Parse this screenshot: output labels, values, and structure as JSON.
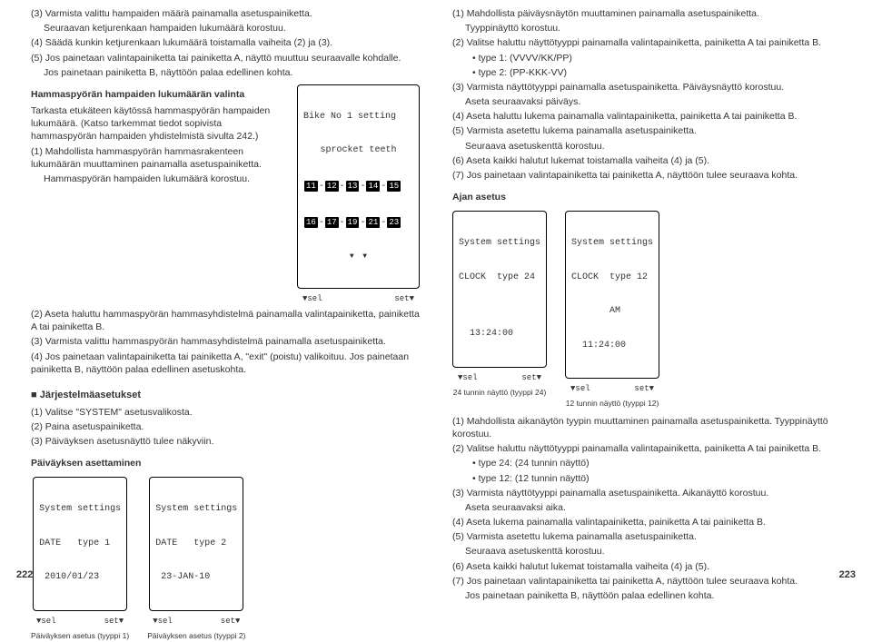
{
  "left": {
    "p1": "(3) Varmista valittu hampaiden määrä painamalla asetuspainiketta.",
    "p1b": "Seuraavan ketjurenkaan hampaiden lukumäärä korostuu.",
    "p2": "(4) Säädä kunkin ketjurenkaan lukumäärä toistamalla vaiheita (2) ja (3).",
    "p3": "(5) Jos painetaan valintapainiketta tai painiketta A, näyttö muuttuu seuraavalle kohdalle.",
    "p3b": "Jos painetaan painiketta B, näyttöön palaa edellinen kohta.",
    "sprocket_title1": "Bike No 1 setting",
    "sprocket_title2": "sprocket teeth",
    "sprocket_row1": [
      "11",
      "12",
      "13",
      "14",
      "15"
    ],
    "sprocket_row2": [
      "16",
      "17",
      "19",
      "21",
      "23"
    ],
    "sprocket_sel": "▼sel",
    "sprocket_set": "set▼",
    "hblock_title": "Hammaspyörän hampaiden lukumäärän valinta",
    "hblock_p1": "Tarkasta etukäteen käytössä hammaspyörän hampaiden lukumäärä. (Katso tarkemmat tiedot sopivista hammaspyörän hampaiden yhdistelmistä sivulta 242.)",
    "hblock_p2": "(1) Mahdollista hammaspyörän hammasrakenteen lukumäärän muuttaminen painamalla asetuspainiketta.",
    "hblock_p2b": "Hammaspyörän hampaiden lukumäärä korostuu.",
    "hblock_p3": "(2) Aseta haluttu hammaspyörän hammasyhdistelmä painamalla valintapainiketta, painiketta A tai painiketta B.",
    "hblock_p4": "(3) Varmista valittu hammaspyörän hammasyhdistelmä painamalla asetuspainiketta.",
    "hblock_p5": "(4) Jos painetaan valintapainiketta tai painiketta A, \"exit\" (poistu) valikoituu. Jos painetaan painiketta B, näyttöön palaa edellinen asetuskohta.",
    "jarj_header": "Järjestelmäasetukset",
    "jarj_1": "(1) Valitse \"SYSTEM\" asetusvalikosta.",
    "jarj_2": "(2) Paina asetuspainiketta.",
    "jarj_3": "(3) Päiväyksen asetusnäyttö tulee näkyviin.",
    "paiv_head": "Päiväyksen asettaminen",
    "lcd1_l1": "System settings",
    "lcd1_l2": "DATE   type 1",
    "lcd1_l3": " 2010/01/23",
    "lcd1_cap": "Päiväyksen asetus (tyyppi 1)",
    "lcd2_l1": "System settings",
    "lcd2_l2": "DATE   type 2",
    "lcd2_l3": " 23-JAN-10",
    "lcd2_cap": "Päiväyksen asetus (tyyppi 2)",
    "nav_sel": "▼sel",
    "nav_set": "set▼"
  },
  "right": {
    "p1": "(1) Mahdollista päiväysnäytön muuttaminen painamalla asetuspainiketta.",
    "p1b": "Tyyppinäyttö korostuu.",
    "p2": "(2) Valitse haluttu näyttötyyppi painamalla valintapainiketta, painiketta A tai painiketta B.",
    "p2b1": "• type 1: (VVVV/KK/PP)",
    "p2b2": "• type 2: (PP-KKK-VV)",
    "p3": "(3) Varmista näyttötyyppi painamalla asetuspainiketta. Päiväysnäyttö korostuu.",
    "p3b": "Aseta seuraavaksi päiväys.",
    "p4": "(4) Aseta haluttu lukema painamalla valintapainiketta, painiketta A tai painiketta B.",
    "p5": "(5) Varmista asetettu lukema painamalla asetuspainiketta.",
    "p5b": "Seuraava asetuskenttä korostuu.",
    "p6": "(6) Aseta kaikki halutut lukemat toistamalla vaiheita (4) ja (5).",
    "p7": "(7) Jos painetaan valintapainiketta tai painiketta A, näyttöön tulee seuraava kohta.",
    "ajanhead": "Ajan asetus",
    "lcd3_l1": "System settings",
    "lcd3_l2": "CLOCK  type 24",
    "lcd3_l3": "",
    "lcd3_l4": "  13:24:00",
    "lcd3_cap": "24 tunnin näyttö (tyyppi 24)",
    "lcd4_l1": "System settings",
    "lcd4_l2": "CLOCK  type 12",
    "lcd4_l3": "       AM",
    "lcd4_l4": "  11:24:00",
    "lcd4_cap": "12 tunnin näyttö (tyyppi 12)",
    "q1": "(1) Mahdollista aikanäytön tyypin muuttaminen painamalla asetuspainiketta. Tyyppinäyttö korostuu.",
    "q2": "(2) Valitse haluttu näyttötyyppi painamalla valintapainiketta, painiketta A tai painiketta B.",
    "q2b1": "• type 24: (24 tunnin näyttö)",
    "q2b2": "• type 12: (12 tunnin näyttö)",
    "q3": "(3) Varmista näyttötyyppi painamalla asetuspainiketta. Aikanäyttö korostuu.",
    "q3b": "Aseta seuraavaksi aika.",
    "q4": "(4) Aseta lukema painamalla valintapainiketta, painiketta A tai painiketta B.",
    "q5": "(5) Varmista asetettu lukema painamalla asetuspainiketta.",
    "q5b": "Seuraava asetuskenttä korostuu.",
    "q6": "(6) Aseta kaikki halutut lukemat toistamalla vaiheita (4) ja (5).",
    "q7": "(7) Jos painetaan valintapainiketta tai painiketta A, näyttöön tulee seuraava kohta.",
    "q7b": "Jos painetaan painiketta B, näyttöön palaa edellinen kohta."
  },
  "page_left": "222",
  "page_right": "223"
}
